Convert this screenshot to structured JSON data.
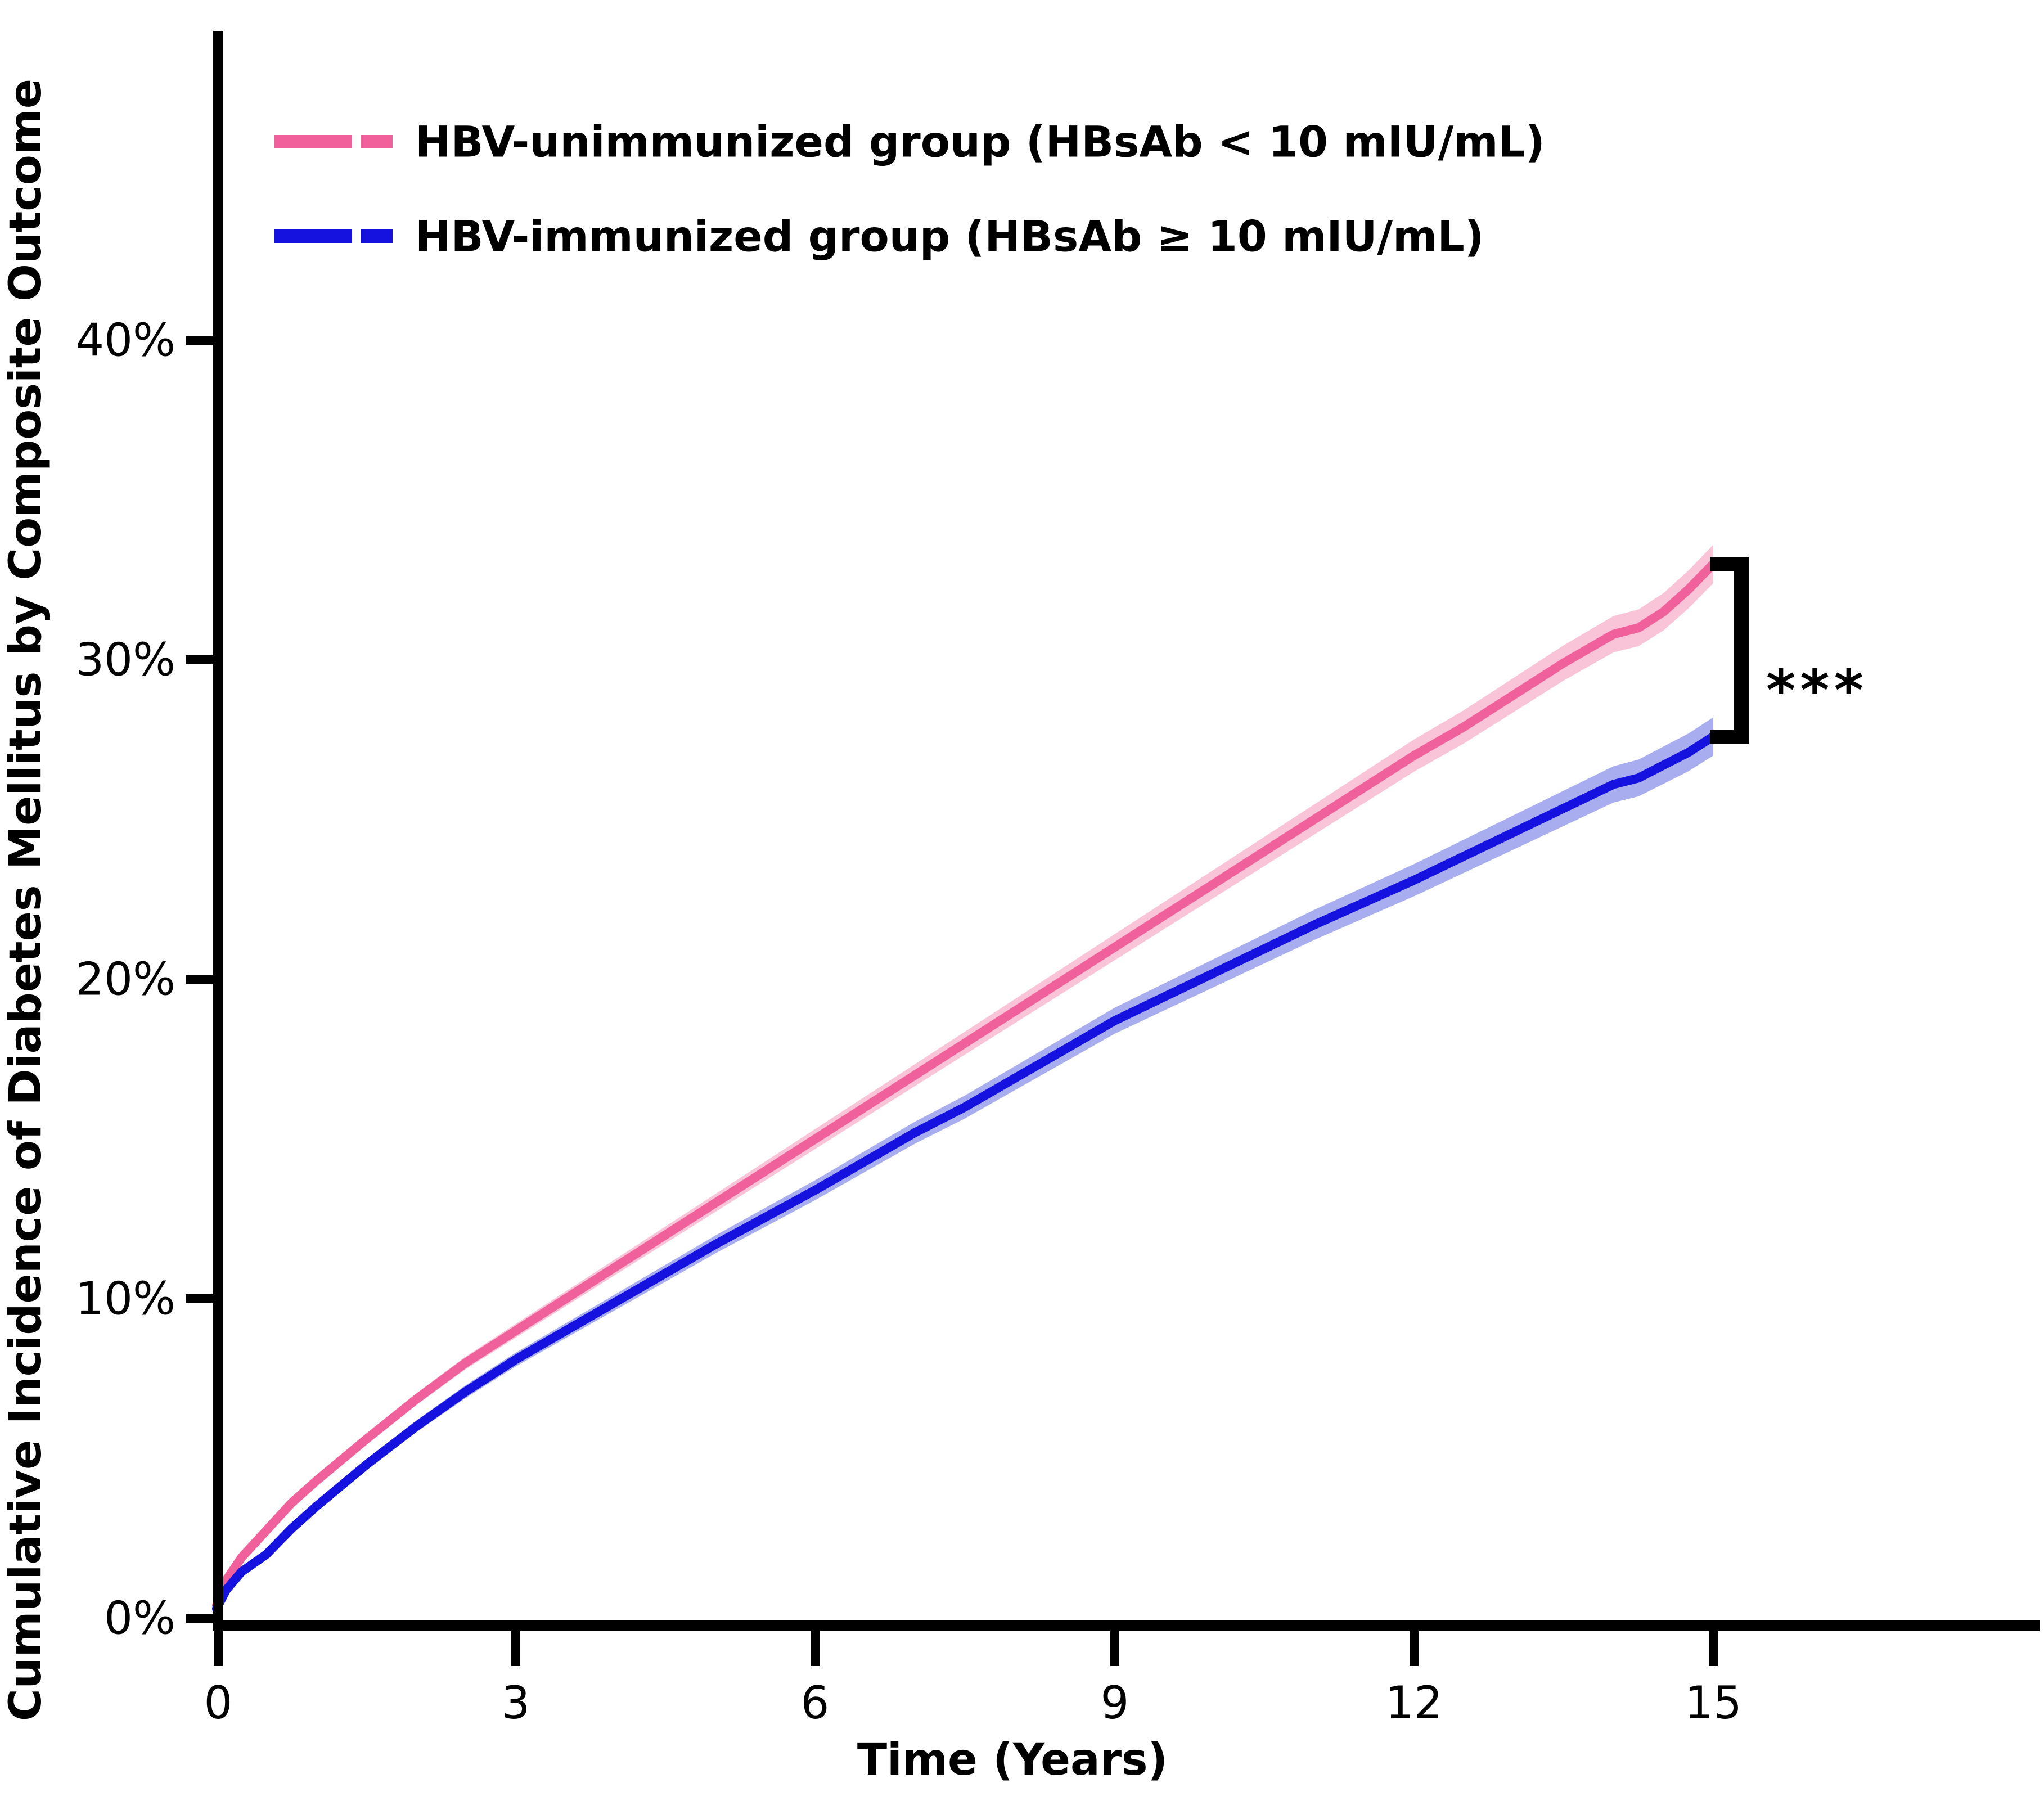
{
  "figure": {
    "x_axis_title": "Time (Years)",
    "y_axis_title": "Cumulative Incidence of Diabetes Mellitus by Composite Outcome",
    "significance_marker": "***"
  },
  "legend": {
    "items": [
      {
        "label": "HBV-unimmunized group (HBsAb < 10 mIU/mL)",
        "color": "#F0609A"
      },
      {
        "label": "HBV-immunized group (HBsAb ≥ 10 mIU/mL)",
        "color": "#1512E0"
      }
    ]
  },
  "chart_data": {
    "type": "line",
    "title": "",
    "xlabel": "Time (Years)",
    "ylabel": "Cumulative Incidence of Diabetes Mellitus by Composite Outcome",
    "xlim": [
      0,
      18.2
    ],
    "ylim": [
      0,
      49.5
    ],
    "grid": false,
    "legend_position": "top-left-inside",
    "x_ticks": [
      0,
      3,
      6,
      9,
      12,
      15
    ],
    "x_tick_labels": [
      "0",
      "3",
      "6",
      "9",
      "12",
      "15"
    ],
    "y_ticks": [
      0,
      10,
      20,
      30,
      40
    ],
    "y_tick_labels": [
      "0%",
      "10%",
      "20%",
      "30%",
      "40%"
    ],
    "x": [
      0,
      0.1,
      0.25,
      0.5,
      0.75,
      1,
      1.5,
      2,
      2.5,
      3,
      3.5,
      4,
      4.5,
      5,
      5.5,
      6,
      6.5,
      7,
      7.5,
      8,
      8.5,
      9,
      9.5,
      10,
      10.5,
      11,
      11.5,
      12,
      12.5,
      13,
      13.5,
      14,
      14.25,
      14.5,
      14.75,
      15
    ],
    "series": [
      {
        "name": "HBV-unimmunized group (HBsAb < 10 mIU/mL)",
        "color": "#F0609A",
        "band_color": "#F9C3D8",
        "values": [
          0.4,
          1.2,
          1.9,
          2.75,
          3.6,
          4.3,
          5.6,
          6.85,
          8.0,
          9.0,
          10.0,
          11.0,
          12.0,
          13.0,
          14.0,
          15.0,
          16.0,
          17.0,
          18.0,
          19.0,
          20.0,
          21.0,
          22.0,
          23.0,
          24.0,
          25.0,
          26.0,
          27.0,
          27.9,
          28.9,
          29.9,
          30.8,
          31.0,
          31.5,
          32.2,
          33.0
        ]
      },
      {
        "name": "HBV-immunized group (HBsAb ≥ 10 mIU/mL)",
        "color": "#1512E0",
        "band_color": "#A7ADEE",
        "values": [
          0.3,
          0.9,
          1.45,
          2.0,
          2.8,
          3.5,
          4.8,
          6.0,
          7.1,
          8.1,
          9.0,
          9.9,
          10.8,
          11.7,
          12.55,
          13.4,
          14.3,
          15.2,
          16.0,
          16.9,
          17.8,
          18.7,
          19.45,
          20.2,
          20.95,
          21.7,
          22.4,
          23.1,
          23.85,
          24.6,
          25.35,
          26.1,
          26.3,
          26.7,
          27.1,
          27.6
        ],
        "values_unit": "%"
      }
    ],
    "confidence_band_halfwidth_pct": {
      "base": 0.12,
      "per_year": 0.032
    },
    "annotations": {
      "comparison_bracket": {
        "from_series": 0,
        "to_series": 1,
        "at_x": 15
      },
      "significance_label": "***"
    }
  }
}
